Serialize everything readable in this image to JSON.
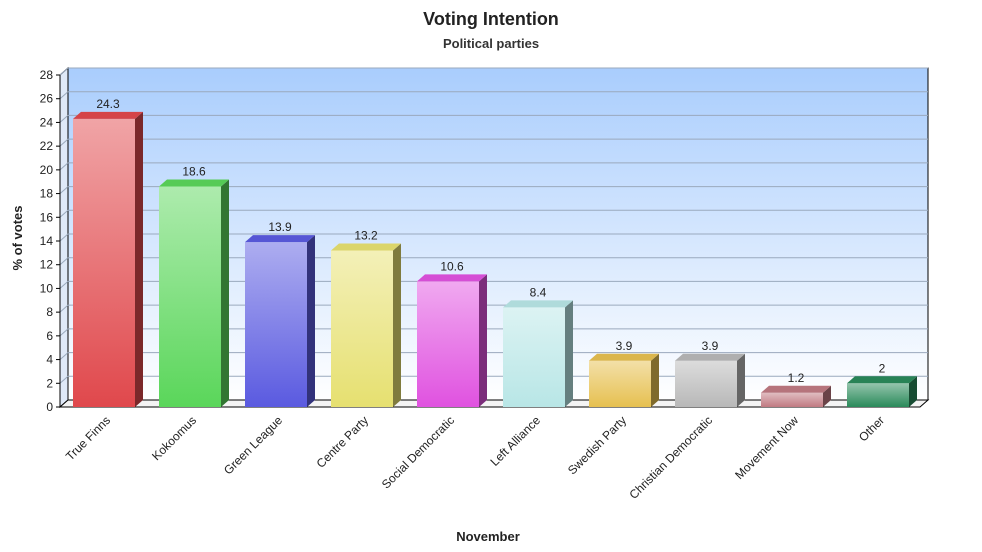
{
  "chart_data": {
    "type": "bar",
    "title": "Voting Intention",
    "subtitle": "Political parties",
    "xlabel": "November",
    "ylabel": "% of votes",
    "ylim": [
      0,
      28
    ],
    "yticks": [
      0,
      2,
      4,
      6,
      8,
      10,
      12,
      14,
      16,
      18,
      20,
      22,
      24,
      26,
      28
    ],
    "grid": true,
    "categories": [
      "True Finns",
      "Kokoomus",
      "Green League",
      "Centre Party",
      "Social Democratic",
      "Left Alliance",
      "Swedish Party",
      "Christian Democratic",
      "Movement Now",
      "Other"
    ],
    "values": [
      24.3,
      18.6,
      13.9,
      13.2,
      10.6,
      8.4,
      3.9,
      3.9,
      1.2,
      2
    ],
    "data_labels": [
      "24.3",
      "18.6",
      "13.9",
      "13.2",
      "10.6",
      "8.4",
      "3.9",
      "3.9",
      "1.2",
      "2"
    ],
    "colors": [
      "#e0484c",
      "#5ad65a",
      "#5a5ae0",
      "#e6e070",
      "#e052e0",
      "#b8e6e6",
      "#e6c050",
      "#b8b8b8",
      "#c07a82",
      "#2a8a5a"
    ],
    "plot_background": {
      "top": "#a9cdfd",
      "bottom": "#ffffff"
    }
  }
}
